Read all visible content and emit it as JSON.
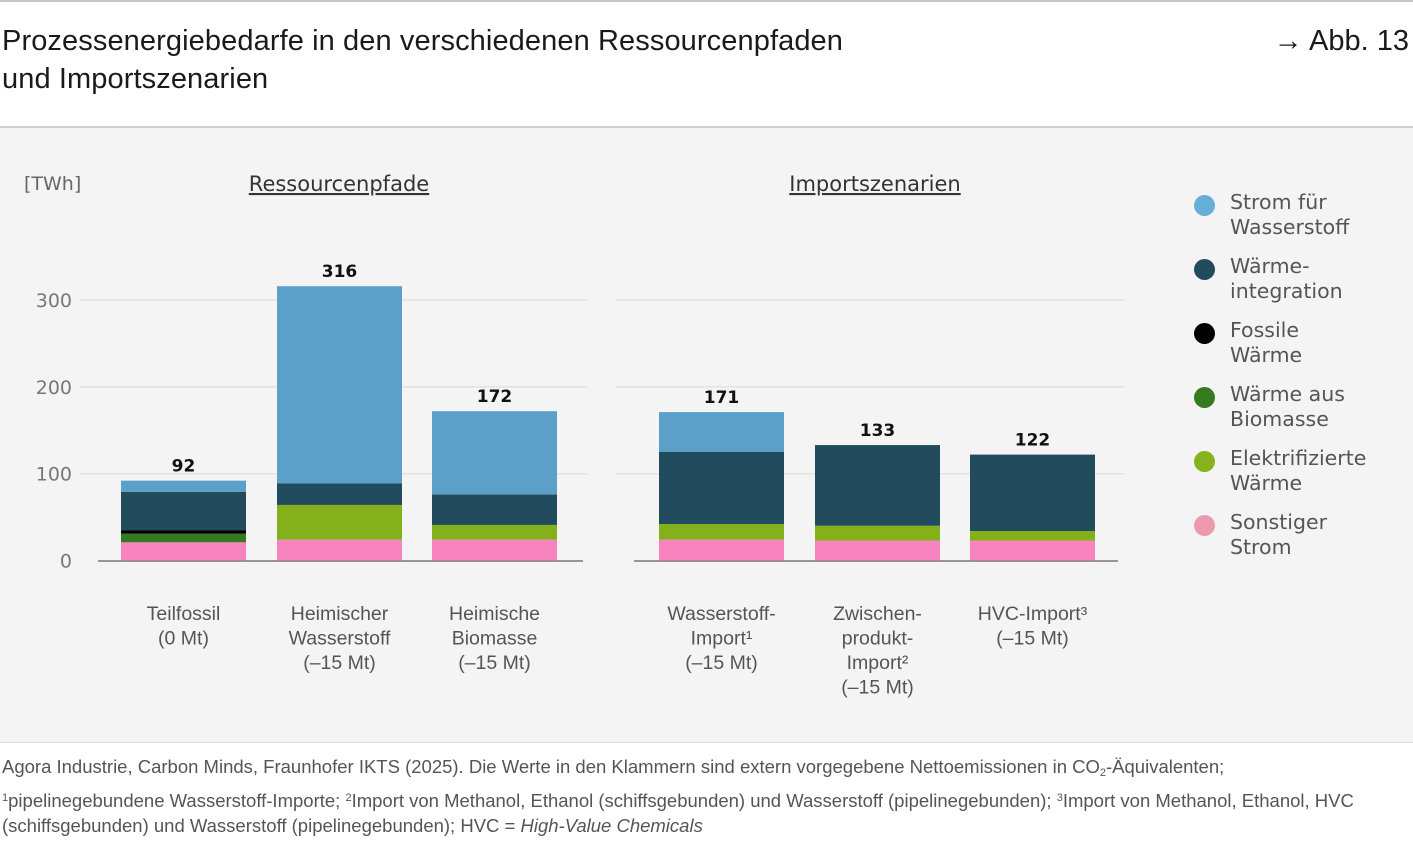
{
  "header": {
    "title_line1": "Prozessenergiebedarfe in den verschiedenen Ressourcenpfaden",
    "title_line2": "und Importszenarien",
    "figure_ref": "→ Abb. 13"
  },
  "chart_data": {
    "type": "bar",
    "stacked": true,
    "unit_label": "[TWh]",
    "ylim": [
      0,
      330
    ],
    "yticks": [
      0,
      100,
      200,
      300
    ],
    "grid": true,
    "legend_position": "right",
    "groups": [
      {
        "title": "Ressourcenpfade",
        "categories": [
          0,
          1,
          2
        ]
      },
      {
        "title": "Importszenarien",
        "categories": [
          3,
          4,
          5
        ]
      }
    ],
    "categories": [
      {
        "lines": [
          "Teilfossil",
          "(0 Mt)"
        ]
      },
      {
        "lines": [
          "Heimischer",
          "Wasserstoff",
          "(–15 Mt)"
        ]
      },
      {
        "lines": [
          "Heimische",
          "Biomasse",
          "(–15 Mt)"
        ]
      },
      {
        "lines": [
          "Wasserstoff-",
          "Import¹",
          "(–15 Mt)"
        ]
      },
      {
        "lines": [
          "Zwischen-",
          "produkt-",
          "Import²",
          "(–15 Mt)"
        ]
      },
      {
        "lines": [
          "HVC-Import³",
          "(–15 Mt)"
        ]
      }
    ],
    "totals": [
      92,
      316,
      172,
      171,
      133,
      122
    ],
    "series": [
      {
        "name": "Sonstiger Strom",
        "label": "Sonstiger\nStrom",
        "color": "#f784bf",
        "legend_color": "#ee9aae",
        "values": [
          21,
          24,
          24,
          24,
          23,
          23
        ]
      },
      {
        "name": "Elektrifizierte Wärme",
        "label": "Elektrifizierte\nWärme",
        "color": "#84b11a",
        "legend_color": "#86b21c",
        "values": [
          0,
          40,
          17,
          18,
          17,
          11
        ]
      },
      {
        "name": "Wärme aus Biomasse",
        "label": "Wärme aus\nBiomasse",
        "color": "#357a22",
        "legend_color": "#377a22",
        "values": [
          10,
          0,
          0,
          0,
          0,
          0
        ]
      },
      {
        "name": "Fossile Wärme",
        "label": "Fossile\nWärme",
        "color": "#000000",
        "legend_color": "#000000",
        "values": [
          4,
          0,
          0,
          0,
          0,
          0
        ]
      },
      {
        "name": "Wärmeintegration",
        "label": "Wärme-\nintegration",
        "color": "#224b5e",
        "legend_color": "#224b5e",
        "values": [
          44,
          25,
          35,
          83,
          93,
          88
        ]
      },
      {
        "name": "Strom für Wasserstoff",
        "label": "Strom für\nWasserstoff",
        "color": "#5ca0ca",
        "legend_color": "#66b0d8",
        "values": [
          13,
          227,
          96,
          46,
          0,
          0
        ]
      }
    ]
  },
  "footer": {
    "source": "Agora Industrie, Carbon Minds, Fraunhofer IKTS (2025). Die Werte in den Klammern sind extern vorgegebene Nettoemissionen in CO",
    "co2_sub": "2",
    "source_end": "-Äquivalenten;",
    "note1_mark": "1",
    "note1": "pipelinegebundene Wasserstoff-Importe; ",
    "note2_mark": "2",
    "note2": "Import von Methanol, Ethanol (schiffsgebunden) und Wasserstoff (pipelinegebunden); ",
    "note3_mark": "3",
    "note3": "Import von Methanol, Ethanol, HVC (schiffsgebunden) und Wasserstoff (pipelinegebunden); HVC = ",
    "hvc_expansion": "High-Value Chemicals"
  }
}
